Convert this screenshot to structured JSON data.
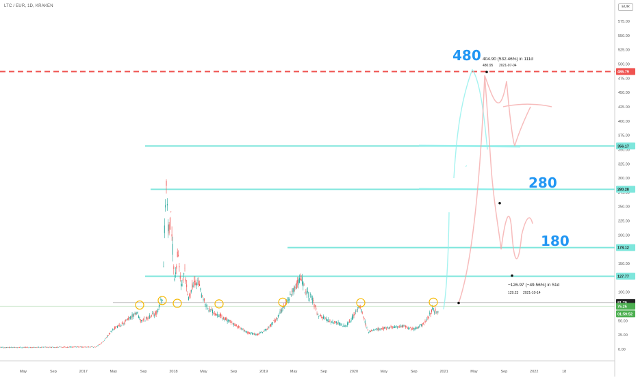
{
  "symbol_header": "LTC / EUR, 1D, KRAKEN",
  "currency_label": "EUR",
  "price_axis_ticks": [
    "575.00",
    "550.00",
    "525.00",
    "500.00",
    "475.00",
    "450.00",
    "425.00",
    "400.00",
    "375.00",
    "350.00",
    "325.00",
    "300.00",
    "275.00",
    "250.00",
    "225.00",
    "200.00",
    "175.00",
    "150.00",
    "125.00",
    "100.00",
    "75.00",
    "50.00",
    "25.00",
    "0.00"
  ],
  "price_tags": [
    {
      "label": "486.79",
      "bg": "#ef5350",
      "fg": "#ffffff"
    },
    {
      "label": "356.17",
      "bg": "#7ee6dc",
      "fg": "#222222"
    },
    {
      "label": "280.28",
      "bg": "#7ee6dc",
      "fg": "#222222"
    },
    {
      "label": "178.12",
      "bg": "#7ee6dc",
      "fg": "#222222"
    },
    {
      "label": "127.77",
      "bg": "#7ee6dc",
      "fg": "#222222"
    },
    {
      "label": "81.79",
      "bg": "#222222",
      "fg": "#ffffff"
    },
    {
      "label": "75.25",
      "bg": "#4caf50",
      "fg": "#ffffff"
    },
    {
      "label": "01:59:52",
      "bg": "#4caf50",
      "fg": "#ffffff"
    }
  ],
  "time_axis_ticks": [
    "May",
    "Sep",
    "2017",
    "May",
    "Sep",
    "2018",
    "May",
    "Sep",
    "2019",
    "May",
    "Sep",
    "2020",
    "May",
    "Sep",
    "2021",
    "May",
    "Sep",
    "2022",
    "18"
  ],
  "annotations": {
    "target_480": "480",
    "target_280": "280",
    "target_180": "180",
    "measure_up": "404.90 (532.46%) in 111d",
    "measure_up_sub1": "480.95",
    "measure_up_sub2": "2021-07-04",
    "measure_down": "−126.97 (−49.56%) in 51d",
    "measure_down_sub1": "129.23",
    "measure_down_sub2": "2021-10-14"
  },
  "colors": {
    "candle_up": "#26a69a",
    "candle_down": "#ef5350",
    "hline_cyan": "#7ee6dc",
    "hline_red": "#ef5350",
    "note_blue": "#2196f3",
    "brush_cyan": "#8ff0ec",
    "brush_pink": "#f4a6a6",
    "circle_orange": "#f5b800"
  }
}
